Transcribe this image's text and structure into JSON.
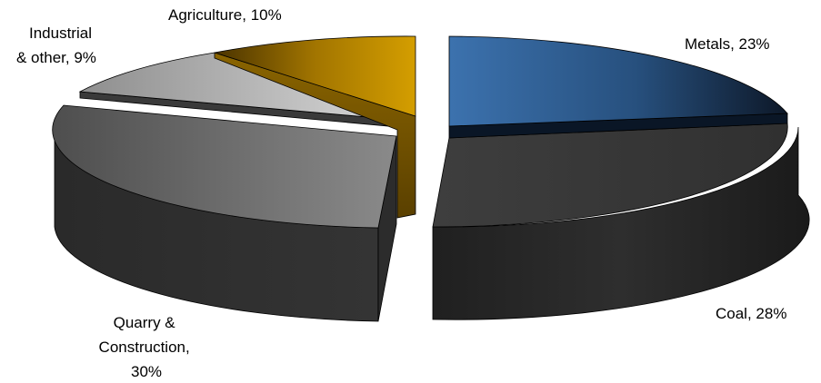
{
  "chart_data": {
    "type": "pie",
    "style": "3d-exploded",
    "slices": [
      {
        "key": "metals",
        "label_lines": [
          "Metals, 23%"
        ],
        "value": 23,
        "color": "#2E5F96"
      },
      {
        "key": "coal",
        "label_lines": [
          "Coal, 28%"
        ],
        "value": 28,
        "color": "#3A3A3A"
      },
      {
        "key": "quarry",
        "label_lines": [
          "Quarry &",
          "Construction,",
          "30%"
        ],
        "value": 30,
        "color": "#6A6A6A"
      },
      {
        "key": "industrial",
        "label_lines": [
          "Industrial",
          "& other, 9%"
        ],
        "value": 9,
        "color": "#A8A8A8"
      },
      {
        "key": "agriculture",
        "label_lines": [
          "Agriculture, 10%"
        ],
        "value": 10,
        "color": "#C99400"
      }
    ],
    "legend": "none"
  }
}
